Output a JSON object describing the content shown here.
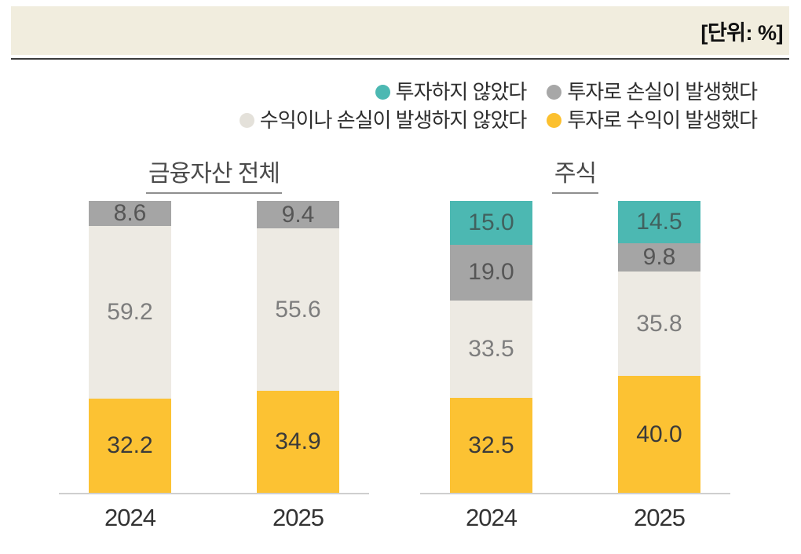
{
  "header": {
    "unit_label": "[단위: %]"
  },
  "legend": {
    "rows": [
      [
        {
          "label": "투자하지 않았다",
          "color": "#4cb8b2"
        },
        {
          "label": "투자로 손실이 발생했다",
          "color": "#a7a7a7"
        }
      ],
      [
        {
          "label": "수익이나 손실이 발생하지 않았다",
          "color": "#e4e1da"
        },
        {
          "label": "투자로 수익이 발생했다",
          "color": "#fcc02e"
        }
      ]
    ]
  },
  "chart_data": [
    {
      "type": "bar",
      "stacked": true,
      "title": "금융자산 전체",
      "categories": [
        "2024",
        "2025"
      ],
      "ylim": [
        0,
        100
      ],
      "unit": "%",
      "legend_position": "top-right",
      "series": [
        {
          "name": "투자로 수익이 발생했다",
          "color": "#fcc233",
          "label_color": "#3a3a3a",
          "values": [
            32.2,
            34.9
          ]
        },
        {
          "name": "수익이나 손실이 발생하지 않았다",
          "color": "#edeae3",
          "label_color": "#7d7d7d",
          "values": [
            59.2,
            55.6
          ]
        },
        {
          "name": "투자로 손실이 발생했다",
          "color": "#a5a5a5",
          "label_color": "#565656",
          "values": [
            8.6,
            9.4
          ]
        }
      ]
    },
    {
      "type": "bar",
      "stacked": true,
      "title": "주식",
      "categories": [
        "2024",
        "2025"
      ],
      "ylim": [
        0,
        100
      ],
      "unit": "%",
      "legend_position": "top-right",
      "series": [
        {
          "name": "투자로 수익이 발생했다",
          "color": "#fcc233",
          "label_color": "#3a3a3a",
          "values": [
            32.5,
            40.0
          ]
        },
        {
          "name": "수익이나 손실이 발생하지 않았다",
          "color": "#edeae3",
          "label_color": "#7d7d7d",
          "values": [
            33.5,
            35.8
          ]
        },
        {
          "name": "투자로 손실이 발생했다",
          "color": "#a5a5a5",
          "label_color": "#565656",
          "values": [
            19.0,
            9.8
          ]
        },
        {
          "name": "투자하지 않았다",
          "color": "#4cb8b2",
          "label_color": "#41615e",
          "values": [
            15.0,
            14.5
          ]
        }
      ]
    }
  ]
}
